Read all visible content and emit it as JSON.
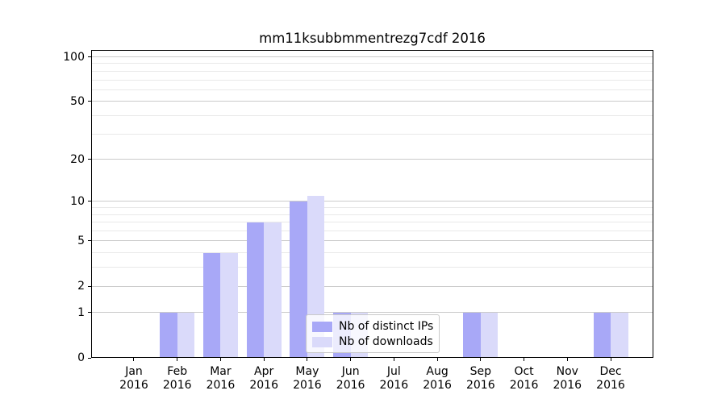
{
  "chart_data": {
    "type": "bar",
    "title": "mm11ksubbmmentrezg7cdf 2016",
    "x_categories": [
      "Jan",
      "Feb",
      "Mar",
      "Apr",
      "May",
      "Jun",
      "Jul",
      "Aug",
      "Sep",
      "Oct",
      "Nov",
      "Dec"
    ],
    "x_year": "2016",
    "series": [
      {
        "name": "Nb of distinct IPs",
        "color": "#a8a8f7",
        "values": [
          0,
          1,
          4,
          7,
          10,
          1,
          0,
          0,
          1,
          0,
          0,
          1
        ]
      },
      {
        "name": "Nb of downloads",
        "color": "#dadafa",
        "values": [
          0,
          1,
          4,
          7,
          11,
          1,
          0,
          0,
          1,
          0,
          0,
          1
        ]
      }
    ],
    "y_axis": {
      "scale": "log1p",
      "ticks": [
        100,
        50,
        20,
        10,
        5,
        2,
        1,
        0
      ],
      "minor_ticks": [
        3,
        4,
        6,
        7,
        8,
        9,
        30,
        40,
        60,
        70,
        80,
        90
      ],
      "max_value": 110
    },
    "grid": {
      "major_color": "#cbcbcb",
      "minor_color": "#e9e9e9"
    },
    "legend": {
      "position": "lower-center",
      "entries": [
        "Nb of distinct IPs",
        "Nb of downloads"
      ]
    }
  }
}
